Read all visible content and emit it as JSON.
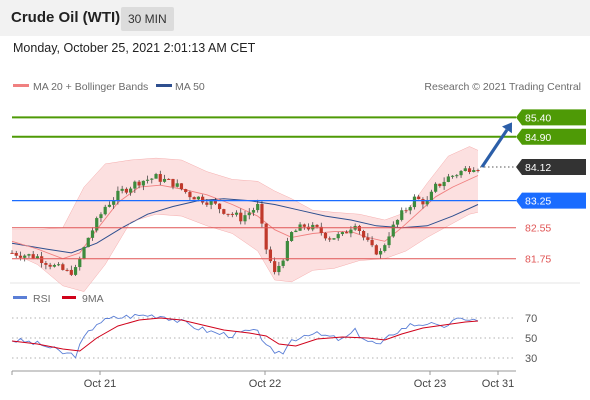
{
  "header": {
    "title": "Crude Oil (WTI)",
    "timeframe": "30 MIN"
  },
  "subtitle": "Monday, October 25, 2021 2:01:13 AM CET",
  "legend": {
    "bollinger": "MA 20 + Bollinger Bands",
    "ma50": "MA 50",
    "credit": "Research © 2021 Trading Central"
  },
  "rsi_legend": {
    "rsi": "RSI",
    "ma9": "9MA"
  },
  "colors": {
    "bollinger": "#f08080",
    "ma50": "#2e4f8f",
    "resistance": "#4e9a06",
    "pivot": "#1a6cff",
    "support": "#e05555",
    "up_candle": "#3d8b3d",
    "down_candle": "#c0392b",
    "arrow": "#2b5ea8",
    "last_price": "#333333",
    "rsi": "#5b7fd6",
    "rsi_ma": "#d0021b"
  },
  "chart_data": {
    "type": "candlestick",
    "instrument": "Crude Oil (WTI)",
    "interval": "30 MIN",
    "x_ticks": [
      "Oct 21",
      "Oct 22",
      "Oct 23",
      "Oct 31"
    ],
    "ylim": [
      81.2,
      85.85
    ],
    "levels": [
      {
        "value": "85.40",
        "kind": "resistance"
      },
      {
        "value": "84.90",
        "kind": "resistance"
      },
      {
        "value": "84.12",
        "kind": "last"
      },
      {
        "value": "83.25",
        "kind": "pivot"
      },
      {
        "value": "82.55",
        "kind": "support"
      },
      {
        "value": "81.75",
        "kind": "support"
      }
    ],
    "close_path": [
      [
        0,
        81.9
      ],
      [
        6,
        81.8
      ],
      [
        10,
        81.55
      ],
      [
        13,
        81.4
      ],
      [
        15,
        81.45
      ],
      [
        18,
        82.3
      ],
      [
        22,
        83.1
      ],
      [
        26,
        83.5
      ],
      [
        30,
        83.75
      ],
      [
        34,
        83.85
      ],
      [
        38,
        83.7
      ],
      [
        42,
        83.4
      ],
      [
        46,
        83.25
      ],
      [
        50,
        83.0
      ],
      [
        54,
        82.8
      ],
      [
        58,
        83.1
      ],
      [
        60,
        82.0
      ],
      [
        62,
        81.35
      ],
      [
        64,
        81.8
      ],
      [
        66,
        82.4
      ],
      [
        69,
        82.6
      ],
      [
        72,
        82.5
      ],
      [
        75,
        82.3
      ],
      [
        78,
        82.35
      ],
      [
        81,
        82.7
      ],
      [
        83,
        82.3
      ],
      [
        85,
        82.0
      ],
      [
        87,
        81.9
      ],
      [
        89,
        82.4
      ],
      [
        92,
        82.9
      ],
      [
        95,
        83.3
      ],
      [
        98,
        83.2
      ],
      [
        100,
        83.6
      ],
      [
        103,
        83.85
      ],
      [
        106,
        84.0
      ],
      [
        109,
        84.15
      ],
      [
        110,
        84.12
      ]
    ],
    "ma20_path": [
      [
        0,
        82.2
      ],
      [
        6,
        82.0
      ],
      [
        12,
        81.75
      ],
      [
        16,
        81.9
      ],
      [
        20,
        82.5
      ],
      [
        25,
        83.2
      ],
      [
        30,
        83.6
      ],
      [
        35,
        83.65
      ],
      [
        40,
        83.55
      ],
      [
        46,
        83.4
      ],
      [
        52,
        83.15
      ],
      [
        58,
        82.85
      ],
      [
        62,
        82.5
      ],
      [
        66,
        82.3
      ],
      [
        71,
        82.4
      ],
      [
        76,
        82.45
      ],
      [
        80,
        82.45
      ],
      [
        84,
        82.3
      ],
      [
        88,
        82.2
      ],
      [
        92,
        82.55
      ],
      [
        96,
        82.95
      ],
      [
        100,
        83.35
      ],
      [
        104,
        83.6
      ],
      [
        108,
        83.8
      ],
      [
        110,
        83.9
      ]
    ],
    "bb_upper_path": [
      [
        0,
        82.5
      ],
      [
        6,
        82.5
      ],
      [
        12,
        82.55
      ],
      [
        17,
        83.6
      ],
      [
        22,
        84.2
      ],
      [
        28,
        84.3
      ],
      [
        34,
        84.35
      ],
      [
        40,
        84.3
      ],
      [
        46,
        84.0
      ],
      [
        52,
        83.8
      ],
      [
        58,
        83.75
      ],
      [
        62,
        83.5
      ],
      [
        66,
        83.3
      ],
      [
        71,
        83.0
      ],
      [
        76,
        82.95
      ],
      [
        82,
        82.9
      ],
      [
        88,
        82.75
      ],
      [
        93,
        82.95
      ],
      [
        98,
        83.7
      ],
      [
        103,
        84.4
      ],
      [
        108,
        84.65
      ],
      [
        110,
        84.55
      ]
    ],
    "bb_lower_path": [
      [
        0,
        81.9
      ],
      [
        6,
        81.6
      ],
      [
        12,
        81.05
      ],
      [
        17,
        80.9
      ],
      [
        22,
        81.6
      ],
      [
        28,
        82.7
      ],
      [
        34,
        82.9
      ],
      [
        40,
        82.85
      ],
      [
        46,
        82.6
      ],
      [
        52,
        82.4
      ],
      [
        58,
        81.95
      ],
      [
        62,
        81.2
      ],
      [
        66,
        81.15
      ],
      [
        71,
        81.45
      ],
      [
        76,
        81.5
      ],
      [
        82,
        81.7
      ],
      [
        88,
        81.75
      ],
      [
        93,
        81.95
      ],
      [
        98,
        82.3
      ],
      [
        103,
        82.6
      ],
      [
        108,
        82.9
      ],
      [
        110,
        82.95
      ]
    ],
    "ma50_path": [
      [
        0,
        82.15
      ],
      [
        8,
        82.0
      ],
      [
        14,
        81.9
      ],
      [
        20,
        82.15
      ],
      [
        26,
        82.55
      ],
      [
        32,
        82.9
      ],
      [
        38,
        83.1
      ],
      [
        44,
        83.25
      ],
      [
        50,
        83.3
      ],
      [
        56,
        83.25
      ],
      [
        62,
        83.15
      ],
      [
        68,
        83.0
      ],
      [
        74,
        82.85
      ],
      [
        80,
        82.75
      ],
      [
        86,
        82.6
      ],
      [
        92,
        82.55
      ],
      [
        98,
        82.6
      ],
      [
        104,
        82.85
      ],
      [
        110,
        83.15
      ]
    ],
    "forecast_arrow": {
      "from": "84.12",
      "to": "85.40"
    },
    "rsi": {
      "levels": [
        "70",
        "50",
        "30"
      ],
      "ylim": [
        20,
        80
      ],
      "rsi_path": [
        [
          0,
          48
        ],
        [
          4,
          46
        ],
        [
          8,
          42
        ],
        [
          12,
          35
        ],
        [
          15,
          33
        ],
        [
          17,
          50
        ],
        [
          20,
          65
        ],
        [
          24,
          70
        ],
        [
          28,
          72
        ],
        [
          32,
          73
        ],
        [
          36,
          72
        ],
        [
          40,
          66
        ],
        [
          44,
          60
        ],
        [
          48,
          55
        ],
        [
          52,
          53
        ],
        [
          56,
          57
        ],
        [
          58,
          55
        ],
        [
          60,
          45
        ],
        [
          62,
          32
        ],
        [
          64,
          36
        ],
        [
          66,
          48
        ],
        [
          70,
          55
        ],
        [
          74,
          52
        ],
        [
          78,
          48
        ],
        [
          81,
          57
        ],
        [
          84,
          47
        ],
        [
          87,
          43
        ],
        [
          90,
          55
        ],
        [
          94,
          63
        ],
        [
          98,
          65
        ],
        [
          101,
          60
        ],
        [
          104,
          66
        ],
        [
          107,
          70
        ],
        [
          110,
          67
        ]
      ],
      "ma9_path": [
        [
          0,
          47
        ],
        [
          6,
          44
        ],
        [
          12,
          39
        ],
        [
          16,
          37
        ],
        [
          20,
          50
        ],
        [
          25,
          62
        ],
        [
          30,
          68
        ],
        [
          35,
          70
        ],
        [
          40,
          68
        ],
        [
          45,
          63
        ],
        [
          50,
          58
        ],
        [
          56,
          55
        ],
        [
          60,
          52
        ],
        [
          63,
          44
        ],
        [
          67,
          42
        ],
        [
          72,
          49
        ],
        [
          78,
          51
        ],
        [
          84,
          50
        ],
        [
          88,
          48
        ],
        [
          92,
          54
        ],
        [
          97,
          60
        ],
        [
          102,
          63
        ],
        [
          107,
          66
        ],
        [
          110,
          67
        ]
      ]
    }
  }
}
